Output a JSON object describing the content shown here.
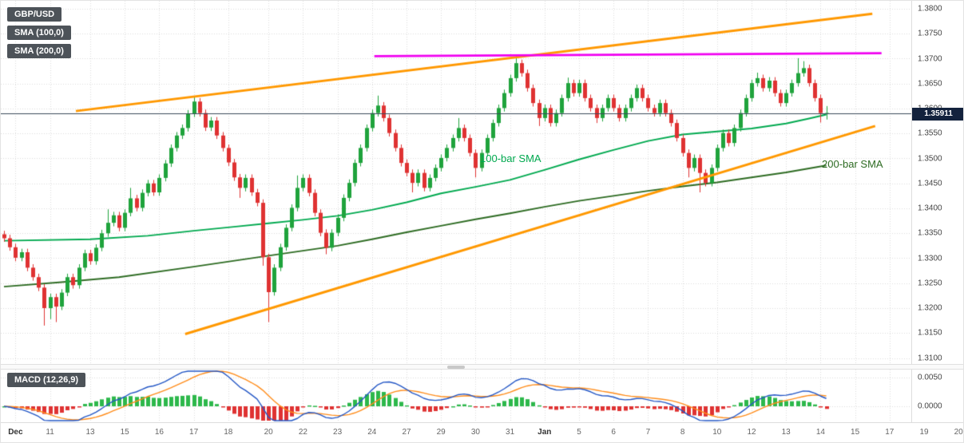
{
  "legend": {
    "symbol": "GBP/USD",
    "sma100_label": "SMA (100,0)",
    "sma200_label": "SMA (200,0)"
  },
  "price_badge": "1.35911",
  "annotations": {
    "sma100": "100-bar SMA",
    "sma200": "200-bar SMA"
  },
  "macd_panel": {
    "label": "MACD (12,26,9)"
  },
  "style": {
    "up": "#1fa33c",
    "down": "#df3232",
    "grid": "#dcdcdc",
    "price_line": "#3a4a5a",
    "macd_line": "#2457c5",
    "signal_line": "#ff8c1a",
    "hist_up": "#2db84b",
    "hist_down": "#df3232",
    "badge_bg": "#4d5359",
    "price_badge_bg": "#13223d"
  },
  "chart_data": {
    "type": "candlestick",
    "symbol": "GBP/USD",
    "last_price": 1.35911,
    "y_axis": {
      "min": 1.31,
      "max": 1.38,
      "tick_step": 0.005,
      "ticks": [
        "1.3800",
        "1.3750",
        "1.3700",
        "1.3650",
        "1.3600",
        "1.3550",
        "1.3500",
        "1.3450",
        "1.3400",
        "1.3350",
        "1.3300",
        "1.3250",
        "1.3200",
        "1.3150",
        "1.3100"
      ]
    },
    "x_axis": {
      "labels": [
        {
          "t": "Dec",
          "i": 2,
          "m": 1
        },
        {
          "t": "11",
          "i": 8
        },
        {
          "t": "13",
          "i": 15
        },
        {
          "t": "15",
          "i": 21
        },
        {
          "t": "16",
          "i": 27
        },
        {
          "t": "17",
          "i": 33
        },
        {
          "t": "18",
          "i": 39
        },
        {
          "t": "20",
          "i": 46
        },
        {
          "t": "22",
          "i": 52
        },
        {
          "t": "23",
          "i": 58
        },
        {
          "t": "24",
          "i": 64
        },
        {
          "t": "27",
          "i": 70
        },
        {
          "t": "29",
          "i": 76
        },
        {
          "t": "30",
          "i": 82
        },
        {
          "t": "31",
          "i": 88
        },
        {
          "t": "Jan",
          "i": 94,
          "m": 1
        },
        {
          "t": "5",
          "i": 100
        },
        {
          "t": "6",
          "i": 106
        },
        {
          "t": "7",
          "i": 112
        },
        {
          "t": "8",
          "i": 118
        },
        {
          "t": "10",
          "i": 124
        },
        {
          "t": "12",
          "i": 130
        },
        {
          "t": "13",
          "i": 136
        },
        {
          "t": "14",
          "i": 142
        },
        {
          "t": "15",
          "i": 148
        },
        {
          "t": "17",
          "i": 154
        },
        {
          "t": "19",
          "i": 160
        },
        {
          "t": "20",
          "i": 166
        }
      ]
    },
    "candles": [
      [
        1.3348,
        1.3355,
        1.3333,
        1.334
      ],
      [
        1.334,
        1.3347,
        1.3315,
        1.3322
      ],
      [
        1.3322,
        1.3329,
        1.3294,
        1.3301
      ],
      [
        1.3301,
        1.3319,
        1.3294,
        1.3312
      ],
      [
        1.3312,
        1.3319,
        1.3274,
        1.3281
      ],
      [
        1.3281,
        1.3288,
        1.3255,
        1.3262
      ],
      [
        1.3262,
        1.3269,
        1.3234,
        1.3241
      ],
      [
        1.3241,
        1.3248,
        1.3165,
        1.32
      ],
      [
        1.32,
        1.3229,
        1.3178,
        1.3222
      ],
      [
        1.3222,
        1.3229,
        1.3172,
        1.3203
      ],
      [
        1.3203,
        1.3238,
        1.3196,
        1.3231
      ],
      [
        1.3231,
        1.3269,
        1.3224,
        1.3262
      ],
      [
        1.3262,
        1.3269,
        1.3239,
        1.3246
      ],
      [
        1.3246,
        1.3288,
        1.3239,
        1.3281
      ],
      [
        1.3281,
        1.3317,
        1.3274,
        1.331
      ],
      [
        1.331,
        1.3317,
        1.3287,
        1.3294
      ],
      [
        1.3294,
        1.3328,
        1.3287,
        1.3321
      ],
      [
        1.3321,
        1.3357,
        1.3314,
        1.335
      ],
      [
        1.335,
        1.3398,
        1.3343,
        1.3371
      ],
      [
        1.3371,
        1.3393,
        1.3364,
        1.3386
      ],
      [
        1.3386,
        1.3393,
        1.3354,
        1.3361
      ],
      [
        1.3361,
        1.3398,
        1.3354,
        1.3391
      ],
      [
        1.3391,
        1.3441,
        1.3384,
        1.342
      ],
      [
        1.342,
        1.3427,
        1.3394,
        1.3401
      ],
      [
        1.3401,
        1.3438,
        1.3394,
        1.3431
      ],
      [
        1.3431,
        1.3457,
        1.3424,
        1.345
      ],
      [
        1.345,
        1.3457,
        1.3425,
        1.3432
      ],
      [
        1.3432,
        1.3468,
        1.3425,
        1.3461
      ],
      [
        1.3461,
        1.3497,
        1.3454,
        1.349
      ],
      [
        1.349,
        1.3528,
        1.3483,
        1.3521
      ],
      [
        1.3521,
        1.3553,
        1.3514,
        1.3546
      ],
      [
        1.3546,
        1.3568,
        1.3539,
        1.3561
      ],
      [
        1.3561,
        1.3597,
        1.3554,
        1.359
      ],
      [
        1.359,
        1.3625,
        1.3583,
        1.3614
      ],
      [
        1.3614,
        1.3621,
        1.3584,
        1.3591
      ],
      [
        1.3591,
        1.3598,
        1.3555,
        1.3562
      ],
      [
        1.3562,
        1.3583,
        1.3555,
        1.3576
      ],
      [
        1.3576,
        1.3583,
        1.3539,
        1.3546
      ],
      [
        1.3546,
        1.3553,
        1.3514,
        1.3521
      ],
      [
        1.3521,
        1.3528,
        1.3485,
        1.3492
      ],
      [
        1.3492,
        1.3499,
        1.3455,
        1.3462
      ],
      [
        1.3462,
        1.3469,
        1.3421,
        1.3441
      ],
      [
        1.3441,
        1.3468,
        1.3434,
        1.3461
      ],
      [
        1.3461,
        1.3468,
        1.3425,
        1.3432
      ],
      [
        1.3432,
        1.3439,
        1.3404,
        1.3411
      ],
      [
        1.3411,
        1.3418,
        1.3285,
        1.3302
      ],
      [
        1.3302,
        1.3309,
        1.3172,
        1.3232
      ],
      [
        1.3232,
        1.3288,
        1.3225,
        1.3281
      ],
      [
        1.3281,
        1.3329,
        1.3274,
        1.3322
      ],
      [
        1.3322,
        1.3368,
        1.3315,
        1.3361
      ],
      [
        1.3361,
        1.3408,
        1.3354,
        1.3401
      ],
      [
        1.3401,
        1.3466,
        1.3394,
        1.3441
      ],
      [
        1.3441,
        1.3468,
        1.3434,
        1.3461
      ],
      [
        1.3461,
        1.3468,
        1.3424,
        1.3431
      ],
      [
        1.3431,
        1.3438,
        1.3384,
        1.3391
      ],
      [
        1.3391,
        1.3398,
        1.3344,
        1.3351
      ],
      [
        1.3351,
        1.3358,
        1.3308,
        1.3321
      ],
      [
        1.3321,
        1.3358,
        1.3314,
        1.3351
      ],
      [
        1.3351,
        1.3388,
        1.3344,
        1.3381
      ],
      [
        1.3381,
        1.3428,
        1.3374,
        1.3421
      ],
      [
        1.3421,
        1.3458,
        1.3414,
        1.3451
      ],
      [
        1.3451,
        1.3498,
        1.3444,
        1.3491
      ],
      [
        1.3491,
        1.3528,
        1.3484,
        1.3521
      ],
      [
        1.3521,
        1.3568,
        1.3514,
        1.3561
      ],
      [
        1.3561,
        1.3598,
        1.3554,
        1.3591
      ],
      [
        1.3591,
        1.3626,
        1.3584,
        1.3606
      ],
      [
        1.3606,
        1.3613,
        1.3574,
        1.3581
      ],
      [
        1.3581,
        1.3588,
        1.3544,
        1.3551
      ],
      [
        1.3551,
        1.3558,
        1.3514,
        1.3521
      ],
      [
        1.3521,
        1.3528,
        1.3484,
        1.3491
      ],
      [
        1.3491,
        1.3498,
        1.3464,
        1.3471
      ],
      [
        1.3471,
        1.3478,
        1.3432,
        1.3451
      ],
      [
        1.3451,
        1.3478,
        1.3444,
        1.3471
      ],
      [
        1.3471,
        1.3478,
        1.3434,
        1.3441
      ],
      [
        1.3441,
        1.3468,
        1.3434,
        1.3461
      ],
      [
        1.3461,
        1.3488,
        1.3454,
        1.3481
      ],
      [
        1.3481,
        1.3508,
        1.3474,
        1.3501
      ],
      [
        1.3501,
        1.3528,
        1.3494,
        1.3521
      ],
      [
        1.3521,
        1.3548,
        1.3514,
        1.3541
      ],
      [
        1.3541,
        1.3581,
        1.3534,
        1.3561
      ],
      [
        1.3561,
        1.3568,
        1.3534,
        1.3541
      ],
      [
        1.3541,
        1.3548,
        1.3504,
        1.3511
      ],
      [
        1.3511,
        1.3518,
        1.3462,
        1.3481
      ],
      [
        1.3481,
        1.3518,
        1.3474,
        1.3511
      ],
      [
        1.3511,
        1.3548,
        1.3504,
        1.3541
      ],
      [
        1.3541,
        1.3578,
        1.3534,
        1.3571
      ],
      [
        1.3571,
        1.3608,
        1.3564,
        1.3601
      ],
      [
        1.3601,
        1.3638,
        1.3594,
        1.3631
      ],
      [
        1.3631,
        1.3668,
        1.3624,
        1.3661
      ],
      [
        1.3661,
        1.3706,
        1.3654,
        1.3691
      ],
      [
        1.3691,
        1.3698,
        1.3664,
        1.3671
      ],
      [
        1.3671,
        1.3678,
        1.3634,
        1.3641
      ],
      [
        1.3641,
        1.3648,
        1.3604,
        1.3611
      ],
      [
        1.3611,
        1.3618,
        1.3565,
        1.3581
      ],
      [
        1.3581,
        1.3608,
        1.3574,
        1.3601
      ],
      [
        1.3601,
        1.3608,
        1.3564,
        1.3571
      ],
      [
        1.3571,
        1.3598,
        1.3564,
        1.3591
      ],
      [
        1.3591,
        1.3628,
        1.3584,
        1.3621
      ],
      [
        1.3621,
        1.3662,
        1.3614,
        1.3651
      ],
      [
        1.3651,
        1.3658,
        1.3624,
        1.3631
      ],
      [
        1.3631,
        1.3658,
        1.3624,
        1.3651
      ],
      [
        1.3651,
        1.3658,
        1.3614,
        1.3621
      ],
      [
        1.3621,
        1.3628,
        1.3594,
        1.3601
      ],
      [
        1.3601,
        1.3608,
        1.3571,
        1.3581
      ],
      [
        1.3581,
        1.3608,
        1.3574,
        1.3601
      ],
      [
        1.3601,
        1.3628,
        1.3594,
        1.3621
      ],
      [
        1.3621,
        1.3628,
        1.3594,
        1.3601
      ],
      [
        1.3601,
        1.3608,
        1.3574,
        1.3581
      ],
      [
        1.3581,
        1.3608,
        1.3574,
        1.3601
      ],
      [
        1.3601,
        1.3628,
        1.3594,
        1.3621
      ],
      [
        1.3621,
        1.3648,
        1.3614,
        1.3641
      ],
      [
        1.3641,
        1.3648,
        1.3614,
        1.3621
      ],
      [
        1.3621,
        1.3628,
        1.3594,
        1.3601
      ],
      [
        1.3601,
        1.3608,
        1.3584,
        1.3591
      ],
      [
        1.3591,
        1.3618,
        1.3584,
        1.3611
      ],
      [
        1.3611,
        1.3618,
        1.3584,
        1.3591
      ],
      [
        1.3591,
        1.3598,
        1.3564,
        1.3571
      ],
      [
        1.3571,
        1.3578,
        1.3534,
        1.3541
      ],
      [
        1.3541,
        1.3548,
        1.3504,
        1.3511
      ],
      [
        1.3511,
        1.3518,
        1.3462,
        1.3481
      ],
      [
        1.3481,
        1.3508,
        1.3474,
        1.3501
      ],
      [
        1.3501,
        1.3508,
        1.3432,
        1.3471
      ],
      [
        1.3471,
        1.3478,
        1.3444,
        1.3451
      ],
      [
        1.3451,
        1.3488,
        1.3444,
        1.3481
      ],
      [
        1.3481,
        1.3528,
        1.3474,
        1.3521
      ],
      [
        1.3521,
        1.3558,
        1.3514,
        1.3551
      ],
      [
        1.3551,
        1.3558,
        1.3524,
        1.3531
      ],
      [
        1.3531,
        1.3568,
        1.3524,
        1.3561
      ],
      [
        1.3561,
        1.3598,
        1.3554,
        1.3591
      ],
      [
        1.3591,
        1.3628,
        1.3584,
        1.3621
      ],
      [
        1.3621,
        1.3658,
        1.3614,
        1.3651
      ],
      [
        1.3651,
        1.3672,
        1.3644,
        1.3661
      ],
      [
        1.3661,
        1.3668,
        1.3634,
        1.3641
      ],
      [
        1.3641,
        1.3663,
        1.3634,
        1.3656
      ],
      [
        1.3656,
        1.3663,
        1.3624,
        1.3631
      ],
      [
        1.3631,
        1.3638,
        1.3604,
        1.3611
      ],
      [
        1.3611,
        1.3638,
        1.3604,
        1.3631
      ],
      [
        1.3631,
        1.3658,
        1.3624,
        1.3651
      ],
      [
        1.3651,
        1.3701,
        1.3644,
        1.3671
      ],
      [
        1.3671,
        1.3695,
        1.3664,
        1.3681
      ],
      [
        1.3681,
        1.3688,
        1.3644,
        1.3651
      ],
      [
        1.3651,
        1.3658,
        1.3614,
        1.3621
      ],
      [
        1.3621,
        1.3628,
        1.3572,
        1.3591
      ],
      [
        1.3591,
        1.3605,
        1.3578,
        1.35911
      ]
    ],
    "overlays": {
      "sma100": {
        "name": "100-bar SMA",
        "color": "#00a94f",
        "points": [
          [
            0,
            1.3335
          ],
          [
            15,
            1.3338
          ],
          [
            25,
            1.3345
          ],
          [
            33,
            1.3355
          ],
          [
            40,
            1.3363
          ],
          [
            46,
            1.337
          ],
          [
            52,
            1.3377
          ],
          [
            58,
            1.3385
          ],
          [
            64,
            1.3397
          ],
          [
            70,
            1.3412
          ],
          [
            76,
            1.343
          ],
          [
            82,
            1.3443
          ],
          [
            88,
            1.3457
          ],
          [
            94,
            1.3477
          ],
          [
            100,
            1.3498
          ],
          [
            106,
            1.3517
          ],
          [
            112,
            1.3535
          ],
          [
            118,
            1.3548
          ],
          [
            124,
            1.3554
          ],
          [
            130,
            1.356
          ],
          [
            136,
            1.357
          ],
          [
            140,
            1.358
          ],
          [
            143,
            1.3588
          ]
        ]
      },
      "sma200": {
        "name": "200-bar SMA",
        "color": "#2d6b22",
        "points": [
          [
            0,
            1.3243
          ],
          [
            10,
            1.3252
          ],
          [
            20,
            1.3262
          ],
          [
            33,
            1.3283
          ],
          [
            46,
            1.3305
          ],
          [
            58,
            1.3325
          ],
          [
            64,
            1.3338
          ],
          [
            70,
            1.3352
          ],
          [
            76,
            1.3365
          ],
          [
            82,
            1.3378
          ],
          [
            88,
            1.339
          ],
          [
            94,
            1.3403
          ],
          [
            100,
            1.3415
          ],
          [
            106,
            1.3425
          ],
          [
            112,
            1.3435
          ],
          [
            118,
            1.3444
          ],
          [
            124,
            1.3452
          ],
          [
            130,
            1.3462
          ],
          [
            136,
            1.3472
          ],
          [
            143,
            1.3486
          ]
        ]
      },
      "channel_upper": {
        "type": "trendline",
        "color": "#ff9800",
        "width": 3,
        "from": [
          12.5,
          1.3595
        ],
        "to": [
          151,
          1.379
        ]
      },
      "channel_lower": {
        "type": "trendline",
        "color": "#ff9800",
        "width": 3,
        "from": [
          31.5,
          1.3148
        ],
        "to": [
          151.5,
          1.3565
        ]
      },
      "resistance": {
        "type": "trendline",
        "color": "#f000f0",
        "width": 3,
        "from": [
          64.4,
          1.3705
        ],
        "to": [
          152.6,
          1.3711
        ]
      },
      "last_price_line": {
        "price": 1.35911,
        "label": "1.35911"
      }
    },
    "indicator": {
      "name": "MACD (12,26,9)",
      "fast": 12,
      "slow": 26,
      "signal": 9,
      "axis_ticks": [
        {
          "t": "0.0050",
          "v": 0.005
        },
        {
          "t": "0.0000",
          "v": 0.0
        }
      ]
    }
  }
}
